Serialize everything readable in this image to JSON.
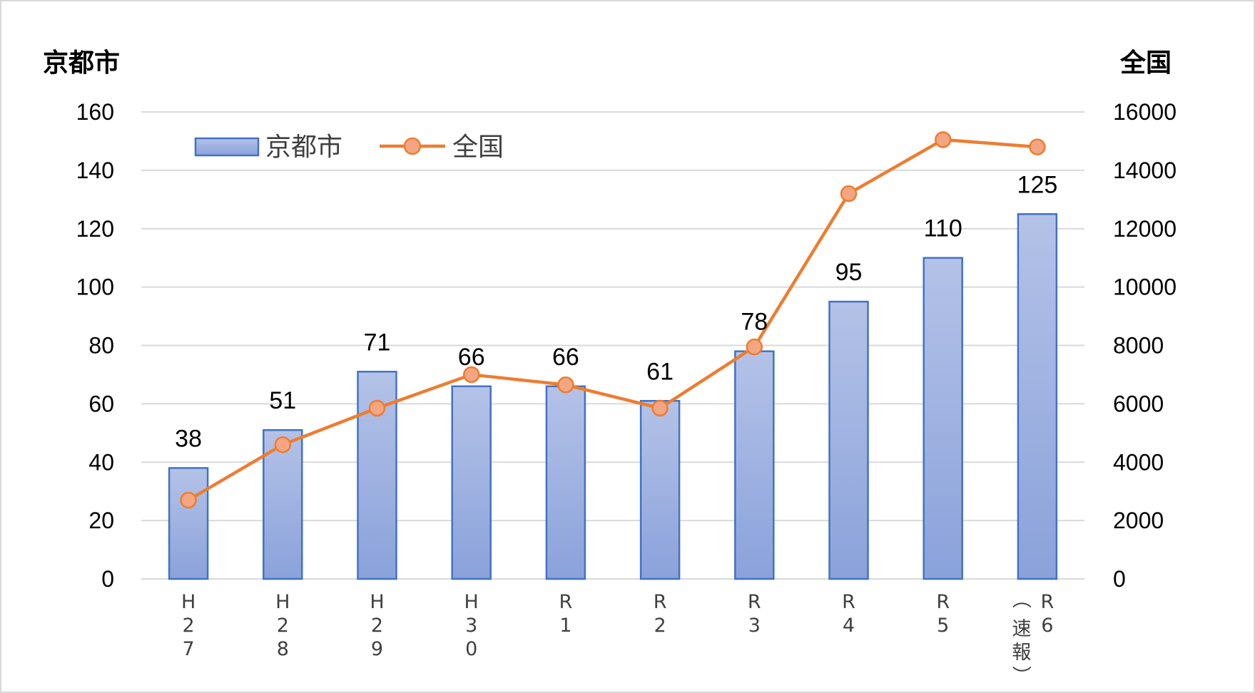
{
  "chart_data": {
    "type": "bar",
    "categories": [
      [
        "H",
        "2",
        "7"
      ],
      [
        "H",
        "2",
        "8"
      ],
      [
        "H",
        "2",
        "9"
      ],
      [
        "H",
        "3",
        "0"
      ],
      [
        "R",
        "1"
      ],
      [
        "R",
        "2"
      ],
      [
        "R",
        "3"
      ],
      [
        "R",
        "4"
      ],
      [
        "R",
        "5"
      ],
      [
        "R",
        "6",
        "（速報）"
      ]
    ],
    "series": [
      {
        "name": "京都市",
        "type": "bar",
        "axis": "left",
        "values": [
          38,
          51,
          71,
          66,
          66,
          61,
          78,
          95,
          110,
          125
        ],
        "color": "#8FA6DC",
        "stroke": "#4472C4",
        "data_labels": true
      },
      {
        "name": "全国",
        "type": "line",
        "axis": "right",
        "values": [
          2700,
          4600,
          5850,
          7000,
          6650,
          5850,
          7950,
          13200,
          15050,
          14800
        ],
        "color": "#ED7D31",
        "marker_fill": "#F4A582",
        "data_labels": false
      }
    ],
    "y_left": {
      "title": "京都市",
      "min": 0,
      "max": 160,
      "ticks": [
        0,
        20,
        40,
        60,
        80,
        100,
        120,
        140,
        160
      ]
    },
    "y_right": {
      "title": "全国",
      "min": 0,
      "max": 16000,
      "ticks": [
        0,
        2000,
        4000,
        6000,
        8000,
        10000,
        12000,
        14000,
        16000
      ]
    },
    "grid": true,
    "legend": "top-left"
  }
}
